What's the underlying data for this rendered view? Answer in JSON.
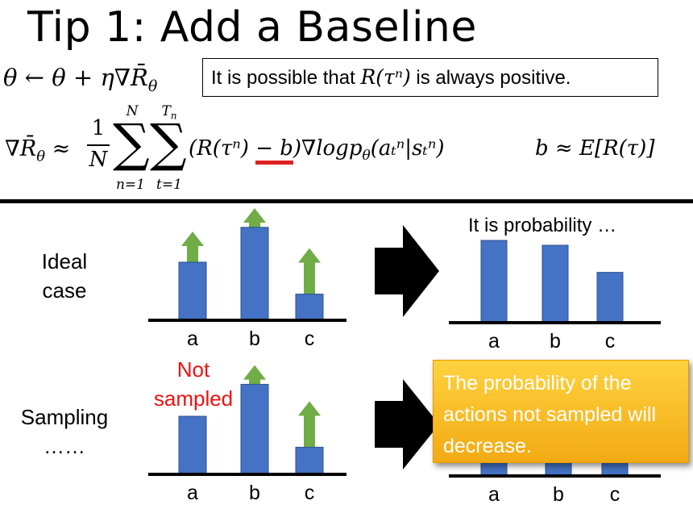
{
  "slide": {
    "title": "Tip 1: Add a Baseline",
    "note_box": {
      "prefix": "It is possible that ",
      "math": "R(τⁿ)",
      "suffix": " is always positive."
    },
    "formula": {
      "update_lhs": "θ ← θ + η∇R̄",
      "sub_theta": "θ",
      "grad_lhs": "∇R̄",
      "approx": "≈",
      "one": "1",
      "N": "N",
      "sum_upper_1": "N",
      "sum_lower_1": "n=1",
      "sum_upper_2": "Tn",
      "sum_lower_2": "t=1",
      "term_pre": "(R(τⁿ) ",
      "term_baseline": "− b",
      "term_post": ")∇logp",
      "term_args": "(aₜⁿ|sₜⁿ)",
      "baseline_def": "b ≈ E[R(τ)]"
    },
    "accent_color": "#4472c4",
    "arrow_color": "#70ad47",
    "underline_color": "#e02020"
  },
  "ideal": {
    "label": "Ideal\ncase",
    "caption": "It is probability …",
    "categories": [
      "a",
      "b",
      "c"
    ],
    "bars_before": [
      0.6,
      0.96,
      0.27
    ],
    "arrows_before": [
      0.4,
      0.25,
      0.6
    ],
    "bars_after": [
      0.85,
      0.8,
      0.52
    ]
  },
  "sampling": {
    "label": "Sampling\n……",
    "not_sampled": "Not\nsampled",
    "categories": [
      "a",
      "b",
      "c"
    ],
    "bars_before": [
      0.6,
      0.93,
      0.28
    ],
    "arrows_before": [
      0,
      0.25,
      0.6
    ],
    "callout": "The probability of the actions not sampled will decrease."
  }
}
